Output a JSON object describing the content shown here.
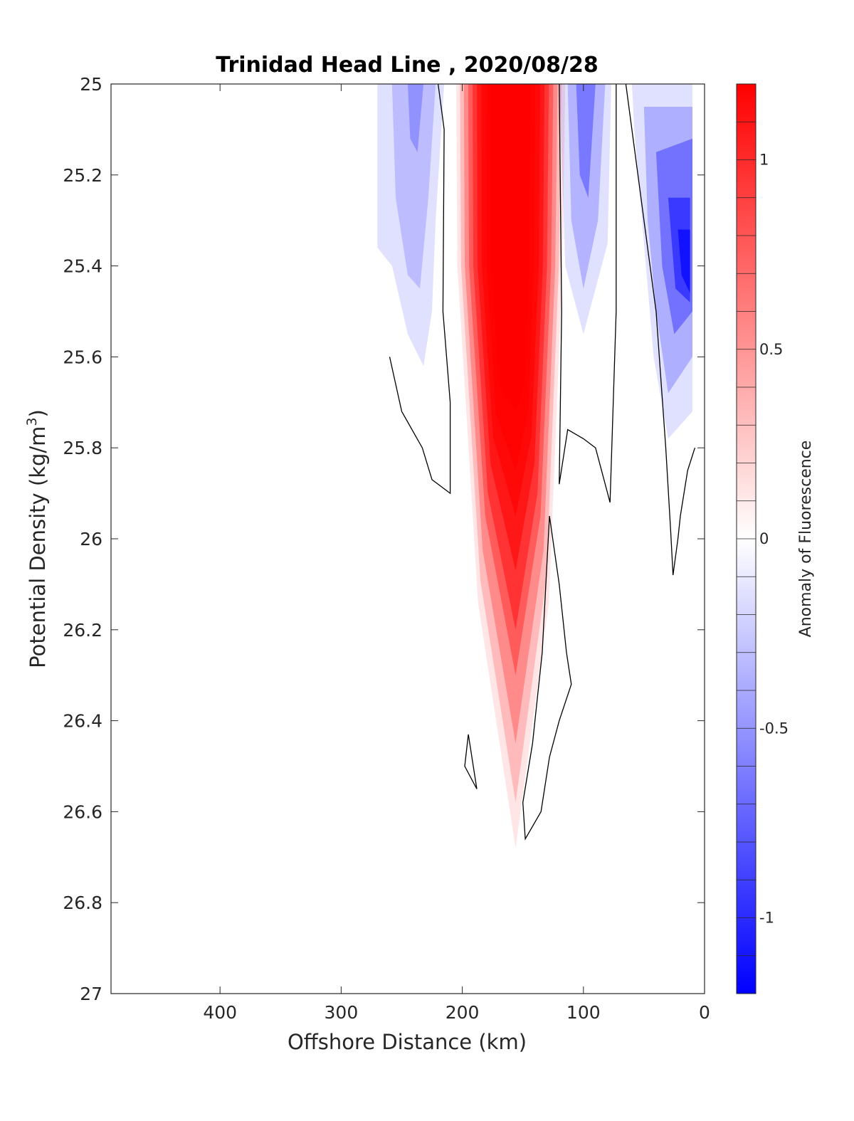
{
  "chart_data": {
    "type": "contour",
    "title": "Trinidad Head Line , 2020/08/28",
    "xlabel": "Offshore Distance (km)",
    "ylabel_main": "Potential Density (kg/m",
    "ylabel_sup": "3",
    "ylabel_end": ")",
    "xlim": [
      490,
      0
    ],
    "x_reversed": true,
    "ylim": [
      25,
      27
    ],
    "y_reversed": true,
    "x_ticks": [
      "400",
      "300",
      "200",
      "100",
      "0"
    ],
    "x_tick_values": [
      400,
      300,
      200,
      100,
      0
    ],
    "y_ticks": [
      "25",
      "25.2",
      "25.4",
      "25.6",
      "25.8",
      "26",
      "26.2",
      "26.4",
      "26.6",
      "26.8",
      "27"
    ],
    "y_tick_values": [
      25,
      25.2,
      25.4,
      25.6,
      25.8,
      26,
      26.2,
      26.4,
      26.6,
      26.8,
      27
    ],
    "colorbar": {
      "label": "Anomaly of Fluorescence",
      "range": [
        -1.2,
        1.2
      ],
      "ticks": [
        "1",
        "0.5",
        "0",
        "-0.5",
        "-1"
      ],
      "tick_values": [
        1,
        0.5,
        0,
        -0.5,
        -1
      ],
      "level_step": 0.1,
      "positive_color": "#ff0000",
      "negative_color": "#0000ff",
      "zero_color": "#ffffff"
    },
    "features": [
      {
        "name": "strong positive anomaly core",
        "x_center": 160,
        "x_range": [
          205,
          125
        ],
        "y_range": [
          25,
          26.68
        ],
        "peak": 1.2
      },
      {
        "name": "weak negative anomaly west",
        "x_range": [
          270,
          215
        ],
        "y_range": [
          25,
          25.62
        ],
        "peak": -0.4
      },
      {
        "name": "negative anomaly mid",
        "x_range": [
          120,
          75
        ],
        "y_range": [
          25,
          25.55
        ],
        "peak": -0.55
      },
      {
        "name": "strongest negative anomaly nearshore",
        "x_range": [
          50,
          10
        ],
        "y_range": [
          25,
          25.78
        ],
        "peak": -0.95
      }
    ],
    "zero_contours": [
      [
        [
          220,
          25
        ],
        [
          215,
          25.1
        ],
        [
          216,
          25.5
        ],
        [
          210,
          25.7
        ],
        [
          210,
          25.9
        ],
        [
          225,
          25.87
        ],
        [
          233,
          25.8
        ],
        [
          250,
          25.72
        ],
        [
          260,
          25.6
        ]
      ],
      [
        [
          120,
          25
        ],
        [
          118,
          25.5
        ],
        [
          120,
          25.88
        ],
        [
          113,
          25.76
        ],
        [
          100,
          25.78
        ],
        [
          90,
          25.8
        ],
        [
          78,
          25.92
        ],
        [
          73,
          25.5
        ],
        [
          73,
          25
        ]
      ],
      [
        [
          65,
          25
        ],
        [
          55,
          25.2
        ],
        [
          40,
          25.5
        ],
        [
          32,
          25.8
        ],
        [
          28,
          25.98
        ],
        [
          26,
          26.08
        ],
        [
          22,
          26.0
        ],
        [
          20,
          25.95
        ],
        [
          14,
          25.85
        ],
        [
          8,
          25.8
        ]
      ],
      [
        [
          128,
          25.95
        ],
        [
          120,
          26.1
        ],
        [
          114,
          26.25
        ],
        [
          110,
          26.32
        ],
        [
          120,
          26.4
        ],
        [
          128,
          26.48
        ],
        [
          135,
          26.6
        ],
        [
          148,
          26.66
        ],
        [
          150,
          26.58
        ],
        [
          142,
          26.45
        ],
        [
          134,
          26.25
        ],
        [
          128,
          25.95
        ]
      ],
      [
        [
          195,
          26.43
        ],
        [
          188,
          26.55
        ],
        [
          198,
          26.5
        ],
        [
          195,
          26.43
        ]
      ]
    ]
  }
}
